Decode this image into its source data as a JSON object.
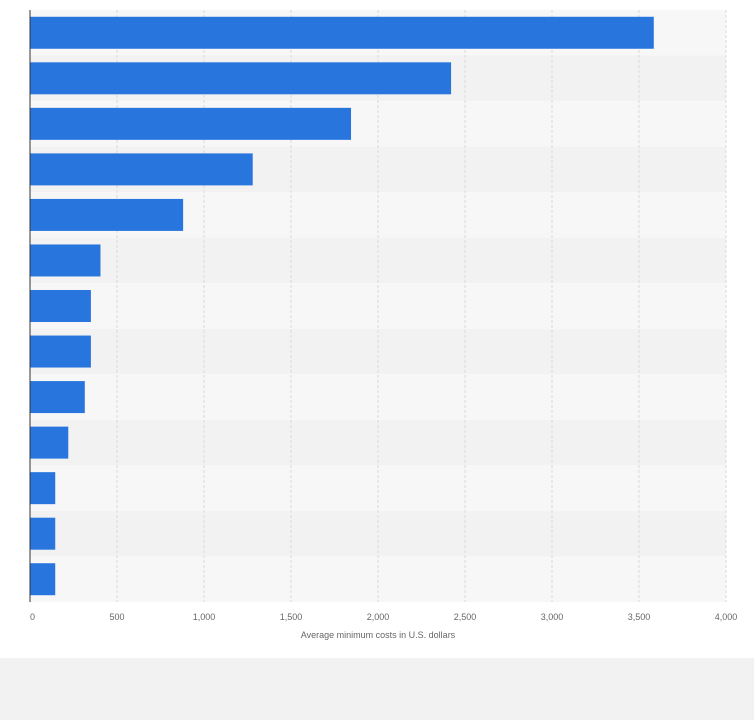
{
  "chart_data": {
    "type": "bar",
    "orientation": "horizontal",
    "categories": [
      "",
      "",
      "",
      "",
      "",
      "",
      "",
      "",
      "",
      "",
      "",
      "",
      ""
    ],
    "values": [
      3585,
      2420,
      1845,
      1280,
      880,
      405,
      350,
      350,
      315,
      220,
      145,
      145,
      145
    ],
    "xlabel": "Average minimum costs in U.S. dollars",
    "ylabel": "",
    "xlim": [
      0,
      4000
    ],
    "xticks": [
      0,
      500,
      1000,
      1500,
      2000,
      2500,
      3000,
      3500,
      4000
    ],
    "xtick_labels": [
      "0",
      "500",
      "1,000",
      "1,500",
      "2,000",
      "2,500",
      "3,000",
      "3,500",
      "4,000"
    ],
    "grid": true,
    "colors": {
      "bar": "#2876dd",
      "band_light": "#f7f7f8",
      "band_dark": "#f2f2f2",
      "grid": "#d9d9d9",
      "axis": "#333333",
      "page": "#f2f2f2"
    }
  }
}
